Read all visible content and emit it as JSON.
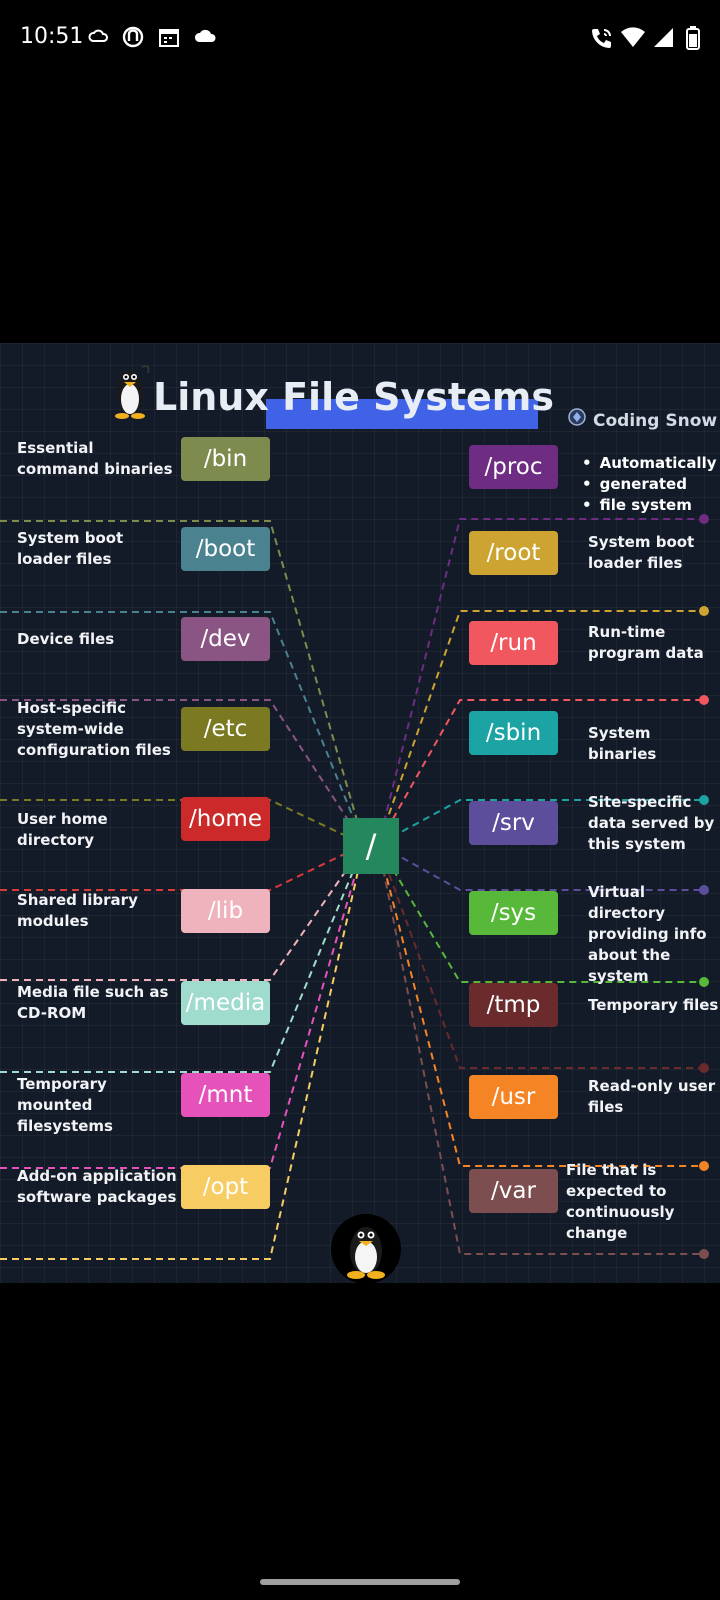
{
  "status_bar": {
    "time": "10:51"
  },
  "infographic": {
    "title": "Linux File Systems",
    "brand": "Coding Snow",
    "root": "/",
    "left": [
      {
        "dir": "/bin",
        "desc": "Essential command binaries",
        "color": "#7d8c4e"
      },
      {
        "dir": "/boot",
        "desc": "System boot loader files",
        "color": "#4b8290"
      },
      {
        "dir": "/dev",
        "desc": "Device files",
        "color": "#8a5583"
      },
      {
        "dir": "/etc",
        "desc": "Host-specific system-wide configuration files",
        "color": "#7b7a22"
      },
      {
        "dir": "/home",
        "desc": "User home directory",
        "color": "#cc2a2a"
      },
      {
        "dir": "/lib",
        "desc": "Shared library modules",
        "color": "#efb3bd"
      },
      {
        "dir": "/media",
        "desc": "Media file such as CD-ROM",
        "color": "#9fdccd"
      },
      {
        "dir": "/mnt",
        "desc": "Temporary mounted filesystems",
        "color": "#e553ba"
      },
      {
        "dir": "/opt",
        "desc": "Add-on application software packages",
        "color": "#f7cc63"
      }
    ],
    "right": [
      {
        "dir": "/proc",
        "desc": "",
        "bullets": [
          "Automatically",
          "generated",
          "file system"
        ],
        "color": "#6e2c82"
      },
      {
        "dir": "/root",
        "desc": "System boot loader files",
        "color": "#cda431"
      },
      {
        "dir": "/run",
        "desc": "Run-time program data",
        "color": "#f0575f"
      },
      {
        "dir": "/sbin",
        "desc": "System binaries",
        "color": "#1ca3a4"
      },
      {
        "dir": "/srv",
        "desc": "Site-specific data served by this system",
        "color": "#5d4e9c"
      },
      {
        "dir": "/sys",
        "desc": "Virtual directory providing info about the system",
        "color": "#58b83a"
      },
      {
        "dir": "/tmp",
        "desc": "Temporary files",
        "color": "#6b2a2c"
      },
      {
        "dir": "/usr",
        "desc": "Read-only user files",
        "color": "#f58425"
      },
      {
        "dir": "/var",
        "desc": "File that is expected to continuously change",
        "color": "#7c4e4f"
      }
    ]
  }
}
